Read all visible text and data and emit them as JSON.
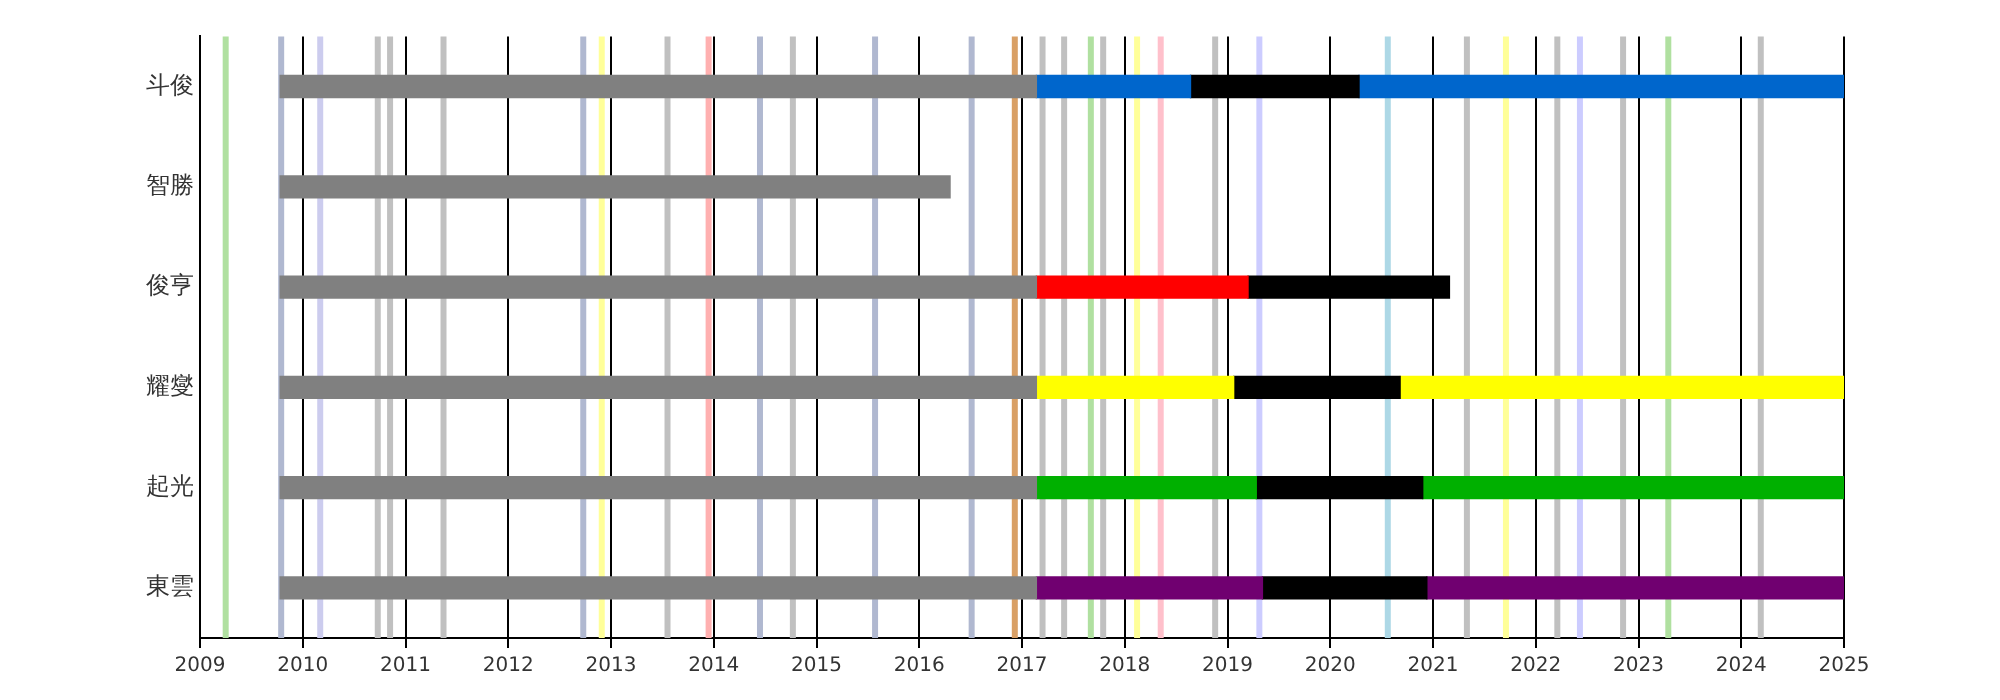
{
  "chart_data": {
    "type": "bar",
    "orientation": "horizontal",
    "categories": [
      "斗俊",
      "智勝",
      "俊亨",
      "耀燮",
      "起光",
      "東雲"
    ],
    "series": [
      {
        "colors": [
          "#808080",
          "#808080",
          "#808080",
          "#808080",
          "#808080",
          "#808080"
        ],
        "base": [
          2009.78,
          2009.78,
          2009.78,
          2009.78,
          2009.78,
          2009.78
        ],
        "values": [
          7.36,
          6.52,
          7.36,
          7.36,
          7.36,
          7.36
        ]
      },
      {
        "colors": [
          "#0066cc",
          "#808080",
          "#ff0000",
          "#ffff00",
          "#00b000",
          "#700070"
        ],
        "base": [
          2017.14,
          null,
          2017.14,
          2017.14,
          2017.14,
          2017.14
        ],
        "values": [
          1.5,
          null,
          2.06,
          1.92,
          2.14,
          2.2
        ]
      },
      {
        "colors": [
          "#000000",
          "#000000",
          "#000000",
          "#000000",
          "#000000",
          "#000000"
        ],
        "base": [
          2018.64,
          null,
          2019.2,
          2019.06,
          2019.28,
          2019.34
        ],
        "values": [
          1.64,
          null,
          1.96,
          1.62,
          1.62,
          1.6
        ]
      },
      {
        "colors": [
          "#0066cc",
          "#808080",
          "#ff0000",
          "#ffff00",
          "#00b000",
          "#700070"
        ],
        "base": [
          2020.28,
          null,
          null,
          2020.68,
          2020.9,
          2020.94
        ],
        "values": [
          4.72,
          null,
          null,
          4.32,
          4.1,
          4.06
        ]
      }
    ],
    "xlim": [
      2009,
      2025
    ],
    "xticks": [
      2009,
      2010,
      2011,
      2012,
      2013,
      2014,
      2015,
      2016,
      2017,
      2018,
      2019,
      2020,
      2021,
      2022,
      2023,
      2024,
      2025
    ],
    "grid": "x",
    "legend": false,
    "ref_lines": [
      {
        "axis": "x",
        "value": 2009.25,
        "color": "#b0e0a0"
      },
      {
        "axis": "x",
        "value": 2009.79,
        "color": "#b0b8d0"
      },
      {
        "axis": "x",
        "value": 2010.17,
        "color": "#ccccee"
      },
      {
        "axis": "x",
        "value": 2010.73,
        "color": "#c0c0c0"
      },
      {
        "axis": "x",
        "value": 2010.85,
        "color": "#c0c0c0"
      },
      {
        "axis": "x",
        "value": 2011.37,
        "color": "#c0c0c0"
      },
      {
        "axis": "x",
        "value": 2012.73,
        "color": "#b0b8d0"
      },
      {
        "axis": "x",
        "value": 2012.91,
        "color": "#ffff99"
      },
      {
        "axis": "x",
        "value": 2013.55,
        "color": "#c0c0c0"
      },
      {
        "axis": "x",
        "value": 2013.95,
        "color": "#ffb0b0"
      },
      {
        "axis": "x",
        "value": 2014.45,
        "color": "#b0b8d0"
      },
      {
        "axis": "x",
        "value": 2014.77,
        "color": "#c0c0c0"
      },
      {
        "axis": "x",
        "value": 2015.57,
        "color": "#b0b8d0"
      },
      {
        "axis": "x",
        "value": 2016.51,
        "color": "#b0b8d0"
      },
      {
        "axis": "x",
        "value": 2016.93,
        "color": "#d9a066"
      },
      {
        "axis": "x",
        "value": 2017.2,
        "color": "#c0c0c0"
      },
      {
        "axis": "x",
        "value": 2017.41,
        "color": "#c0c0c0"
      },
      {
        "axis": "x",
        "value": 2017.67,
        "color": "#b0e0a0"
      },
      {
        "axis": "x",
        "value": 2017.79,
        "color": "#c0c0c0"
      },
      {
        "axis": "x",
        "value": 2018.12,
        "color": "#ffff99"
      },
      {
        "axis": "x",
        "value": 2018.35,
        "color": "#ffc0cb"
      },
      {
        "axis": "x",
        "value": 2018.88,
        "color": "#c0c0c0"
      },
      {
        "axis": "x",
        "value": 2019.31,
        "color": "#ccccff"
      },
      {
        "axis": "x",
        "value": 2020.56,
        "color": "#add8e6"
      },
      {
        "axis": "x",
        "value": 2021.33,
        "color": "#c0c0c0"
      },
      {
        "axis": "x",
        "value": 2021.71,
        "color": "#ffff99"
      },
      {
        "axis": "x",
        "value": 2022.21,
        "color": "#c0c0c0"
      },
      {
        "axis": "x",
        "value": 2022.43,
        "color": "#ccccff"
      },
      {
        "axis": "x",
        "value": 2022.85,
        "color": "#c0c0c0"
      },
      {
        "axis": "x",
        "value": 2023.29,
        "color": "#b0e0a0"
      },
      {
        "axis": "x",
        "value": 2024.19,
        "color": "#c0c0c0"
      }
    ]
  }
}
